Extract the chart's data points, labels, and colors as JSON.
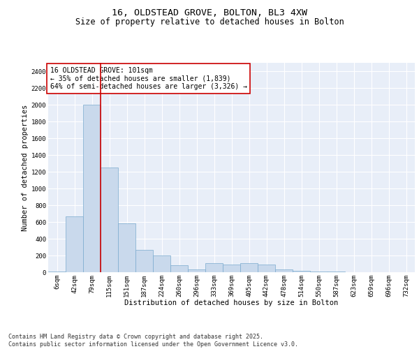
{
  "title_line1": "16, OLDSTEAD GROVE, BOLTON, BL3 4XW",
  "title_line2": "Size of property relative to detached houses in Bolton",
  "xlabel": "Distribution of detached houses by size in Bolton",
  "ylabel": "Number of detached properties",
  "bar_color": "#c9d9ec",
  "bar_edge_color": "#7aaace",
  "vline_color": "#cc0000",
  "categories": [
    "6sqm",
    "42sqm",
    "79sqm",
    "115sqm",
    "151sqm",
    "187sqm",
    "224sqm",
    "260sqm",
    "296sqm",
    "333sqm",
    "369sqm",
    "405sqm",
    "442sqm",
    "478sqm",
    "514sqm",
    "550sqm",
    "587sqm",
    "623sqm",
    "659sqm",
    "696sqm",
    "732sqm"
  ],
  "values": [
    10,
    670,
    2000,
    1250,
    580,
    270,
    200,
    80,
    35,
    110,
    90,
    110,
    90,
    30,
    15,
    5,
    5,
    0,
    0,
    0,
    0
  ],
  "ylim": [
    0,
    2500
  ],
  "yticks": [
    0,
    200,
    400,
    600,
    800,
    1000,
    1200,
    1400,
    1600,
    1800,
    2000,
    2200,
    2400
  ],
  "annotation_text": "16 OLDSTEAD GROVE: 101sqm\n← 35% of detached houses are smaller (1,839)\n64% of semi-detached houses are larger (3,326) →",
  "annotation_box_color": "#ffffff",
  "annotation_box_edge": "#cc0000",
  "footnote": "Contains HM Land Registry data © Crown copyright and database right 2025.\nContains public sector information licensed under the Open Government Licence v3.0.",
  "background_color": "#e8eef8",
  "grid_color": "#ffffff",
  "title_fontsize": 9.5,
  "subtitle_fontsize": 8.5,
  "axis_label_fontsize": 7.5,
  "tick_fontsize": 6.5,
  "annotation_fontsize": 7,
  "footnote_fontsize": 6
}
